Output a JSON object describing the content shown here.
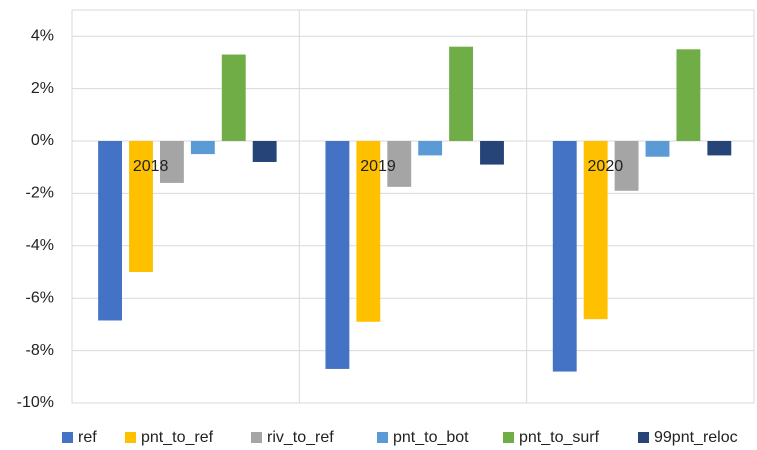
{
  "chart_data": {
    "type": "bar",
    "categories": [
      "2018",
      "2019",
      "2020"
    ],
    "series": [
      {
        "name": "ref",
        "color": "#4472c4",
        "values": [
          -6.85,
          -8.7,
          -8.8
        ]
      },
      {
        "name": "pnt_to_ref",
        "color": "#ffc000",
        "values": [
          -5.0,
          -6.9,
          -6.8
        ]
      },
      {
        "name": "riv_to_ref",
        "color": "#a5a5a5",
        "values": [
          -1.6,
          -1.75,
          -1.9
        ]
      },
      {
        "name": "pnt_to_bot",
        "color": "#5b9bd5",
        "values": [
          -0.5,
          -0.55,
          -0.6
        ]
      },
      {
        "name": "pnt_to_surf",
        "color": "#70ad47",
        "values": [
          3.3,
          3.6,
          3.5
        ]
      },
      {
        "name": "99pnt_reloc",
        "color": "#264478",
        "values": [
          -0.8,
          -0.9,
          -0.55
        ]
      }
    ],
    "ylim": [
      -10,
      5
    ],
    "yticks": [
      {
        "value": -10,
        "label": "-10%"
      },
      {
        "value": -8,
        "label": "-8%"
      },
      {
        "value": -6,
        "label": "-6%"
      },
      {
        "value": -4,
        "label": "-4%"
      },
      {
        "value": -2,
        "label": "-2%"
      },
      {
        "value": 0,
        "label": "0%"
      },
      {
        "value": 2,
        "label": "2%"
      },
      {
        "value": 4,
        "label": "4%"
      }
    ],
    "grid": true
  }
}
